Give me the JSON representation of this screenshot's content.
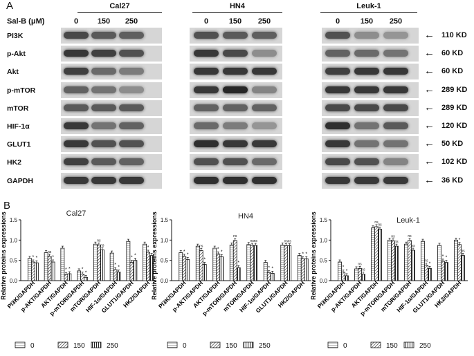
{
  "panel_a": {
    "letter": "A",
    "treatment_label": "Sal-B (μM)",
    "cell_lines": [
      "Cal27",
      "HN4",
      "Leuk-1"
    ],
    "concentrations": [
      "0",
      "150",
      "250"
    ],
    "rows": [
      {
        "protein": "PI3K",
        "kd": "110 KD",
        "i": {
          "Cal27": [
            0.75,
            0.65,
            0.62
          ],
          "HN4": [
            0.7,
            0.65,
            0.62
          ],
          "Leuk-1": [
            0.7,
            0.35,
            0.3
          ]
        }
      },
      {
        "protein": "p-Akt",
        "kd": "60 KD",
        "i": {
          "Cal27": [
            0.85,
            0.8,
            0.7
          ],
          "HN4": [
            0.85,
            0.75,
            0.35
          ],
          "Leuk-1": [
            0.6,
            0.55,
            0.5
          ]
        }
      },
      {
        "protein": "Akt",
        "kd": "60 KD",
        "i": {
          "Cal27": [
            0.8,
            0.55,
            0.45
          ],
          "HN4": [
            0.85,
            0.85,
            0.85
          ],
          "Leuk-1": [
            0.8,
            0.85,
            0.85
          ]
        }
      },
      {
        "protein": "p-mTOR",
        "kd": "289 KD",
        "i": {
          "Cal27": [
            0.6,
            0.5,
            0.35
          ],
          "HN4": [
            0.85,
            0.95,
            0.4
          ],
          "Leuk-1": [
            0.85,
            0.85,
            0.85
          ]
        }
      },
      {
        "protein": "mTOR",
        "kd": "289 KD",
        "i": {
          "Cal27": [
            0.65,
            0.65,
            0.65
          ],
          "HN4": [
            0.6,
            0.6,
            0.6
          ],
          "Leuk-1": [
            0.75,
            0.75,
            0.75
          ]
        }
      },
      {
        "protein": "HIF-1α",
        "kd": "120 KD",
        "i": {
          "Cal27": [
            0.85,
            0.5,
            0.6
          ],
          "HN4": [
            0.55,
            0.45,
            0.3
          ],
          "Leuk-1": [
            0.9,
            0.5,
            0.65
          ]
        }
      },
      {
        "protein": "GLUT1",
        "kd": "50 KD",
        "i": {
          "Cal27": [
            0.85,
            0.7,
            0.7
          ],
          "HN4": [
            0.9,
            0.85,
            0.85
          ],
          "Leuk-1": [
            0.85,
            0.5,
            0.5
          ]
        }
      },
      {
        "protein": "HK2",
        "kd": "102 KD",
        "i": {
          "Cal27": [
            0.8,
            0.65,
            0.6
          ],
          "HN4": [
            0.7,
            0.7,
            0.55
          ],
          "Leuk-1": [
            0.75,
            0.7,
            0.4
          ]
        }
      },
      {
        "protein": "GAPDH",
        "kd": "36 KD",
        "i": {
          "Cal27": [
            0.85,
            0.85,
            0.85
          ],
          "HN4": [
            0.9,
            0.9,
            0.9
          ],
          "Leuk-1": [
            0.85,
            0.85,
            0.85
          ]
        }
      }
    ]
  },
  "panel_b": {
    "letter": "B",
    "legend": [
      "0",
      "150",
      "250"
    ]
  },
  "chart_data": [
    {
      "type": "bar",
      "title": "Cal27",
      "ylabel": "Relative proteins expressions",
      "ylim": [
        0,
        1.5
      ],
      "yticks": [
        "0.0",
        "0.5",
        "1.0",
        "1.5"
      ],
      "categories": [
        "PI3K/GAPDH",
        "p-AKT/GAPDH",
        "AKT/GAPDH",
        "p-mTOR/GAPDH",
        "mTOR/GAPDH",
        "HIF-1α/GAPDH",
        "GLUT1/GAPDH",
        "HK2/GAPDH"
      ],
      "series": [
        {
          "name": "0",
          "values": [
            0.55,
            0.69,
            0.8,
            0.24,
            0.9,
            0.68,
            0.97,
            0.9
          ]
        },
        {
          "name": "150",
          "values": [
            0.46,
            0.6,
            0.15,
            0.16,
            0.88,
            0.27,
            0.45,
            0.7
          ]
        },
        {
          "name": "250",
          "values": [
            0.44,
            0.46,
            0.17,
            0.08,
            0.76,
            0.21,
            0.5,
            0.62
          ]
        }
      ],
      "annotations": [
        "*",
        "*",
        "ns",
        "*",
        "*",
        "*",
        "*",
        "*",
        "ns",
        "ns",
        "*",
        "*",
        "*",
        "*",
        "*"
      ]
    },
    {
      "type": "bar",
      "title": "HN4",
      "ylabel": "Relative proteins expressions",
      "ylim": [
        0,
        1.5
      ],
      "yticks": [
        "0.0",
        "0.5",
        "1.0",
        "1.5"
      ],
      "categories": [
        "PI3K/GAPDH",
        "p-AKT/GAPDH",
        "AKT/GAPDH",
        "p-mTOR/GAPDH",
        "mTOR/GAPDH",
        "HIF-1α/GAPDH",
        "GLUT1/GAPDH",
        "HK2/GAPDH"
      ],
      "series": [
        {
          "name": "0",
          "values": [
            0.69,
            0.85,
            0.8,
            0.88,
            0.89,
            0.45,
            0.88,
            0.62
          ]
        },
        {
          "name": "150",
          "values": [
            0.6,
            0.74,
            0.66,
            0.99,
            0.87,
            0.2,
            0.86,
            0.54
          ]
        },
        {
          "name": "250",
          "values": [
            0.52,
            0.4,
            0.59,
            0.32,
            0.87,
            0.18,
            0.86,
            0.54
          ]
        }
      ],
      "annotations": [
        "*",
        "*",
        "ns",
        "*",
        "*",
        "*",
        "ns",
        "*",
        "ns",
        "ns",
        "*",
        "*",
        "ns",
        "ns",
        "*",
        "*"
      ]
    },
    {
      "type": "bar",
      "title": "Leuk-1",
      "ylabel": "Relative proteins expressions",
      "ylim": [
        0,
        1.5
      ],
      "yticks": [
        "0.0",
        "0.5",
        "1.0",
        "1.5"
      ],
      "categories": [
        "PI3K/GAPDH",
        "p-AKT/GAPDH",
        "AKT/GAPDH",
        "p-mTOR/GAPDH",
        "mTOR/GAPDH",
        "HIF-1α/GAPDH",
        "GLUT1/GAPDH",
        "HK2/GAPDH"
      ],
      "series": [
        {
          "name": "0",
          "values": [
            0.46,
            0.29,
            1.3,
            1.0,
            0.9,
            0.97,
            0.87,
            1.0
          ]
        },
        {
          "name": "150",
          "values": [
            0.21,
            0.3,
            1.33,
            0.98,
            0.99,
            0.38,
            0.48,
            0.89
          ]
        },
        {
          "name": "250",
          "values": [
            0.12,
            0.16,
            1.27,
            0.85,
            0.75,
            0.3,
            0.45,
            0.62
          ]
        }
      ],
      "annotations": [
        "*",
        "*",
        "ns",
        "ns",
        "ns",
        "ns",
        "ns",
        "ns",
        "ns",
        "ns",
        "ns",
        "*",
        "*",
        "*",
        "*",
        "ns",
        "*"
      ]
    }
  ]
}
